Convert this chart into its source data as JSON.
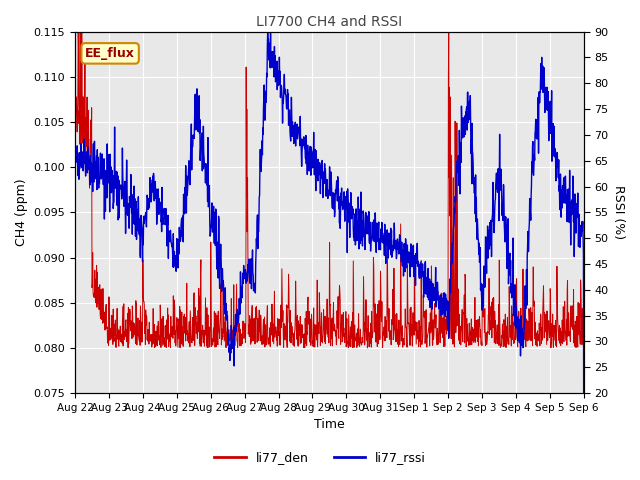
{
  "title": "LI7700 CH4 and RSSI",
  "xlabel": "Time",
  "ylabel_left": "CH4 (ppm)",
  "ylabel_right": "RSSI (%)",
  "annotation": "EE_flux",
  "legend_labels": [
    "li77_den",
    "li77_rssi"
  ],
  "xlim_days": [
    0,
    15
  ],
  "ylim_left": [
    0.075,
    0.115
  ],
  "ylim_right": [
    20,
    90
  ],
  "yticks_left": [
    0.075,
    0.08,
    0.085,
    0.09,
    0.095,
    0.1,
    0.105,
    0.11,
    0.115
  ],
  "yticks_right": [
    20,
    25,
    30,
    35,
    40,
    45,
    50,
    55,
    60,
    65,
    70,
    75,
    80,
    85,
    90
  ],
  "xtick_labels": [
    "Aug 22",
    "Aug 23",
    "Aug 24",
    "Aug 25",
    "Aug 26",
    "Aug 27",
    "Aug 28",
    "Aug 29",
    "Aug 30",
    "Aug 31",
    "Sep 1",
    "Sep 2",
    "Sep 3",
    "Sep 4",
    "Sep 5",
    "Sep 6"
  ],
  "background_color": "#e8e8e8",
  "title_color": "#444444",
  "line_color_red": "#cc0000",
  "line_color_blue": "#0000cc",
  "annotation_fc": "#ffffcc",
  "annotation_ec": "#cc8800"
}
